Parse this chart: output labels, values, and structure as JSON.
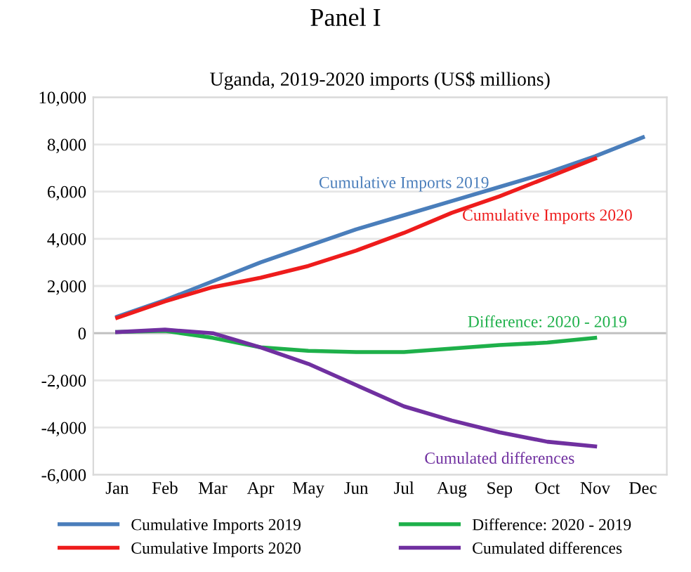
{
  "chart_data": {
    "type": "line",
    "title": "Panel I",
    "subtitle": "Uganda, 2019-2020 imports (US$ millions)",
    "categories": [
      "Jan",
      "Feb",
      "Mar",
      "Apr",
      "May",
      "Jun",
      "Jul",
      "Aug",
      "Sep",
      "Oct",
      "Nov",
      "Dec"
    ],
    "series": [
      {
        "name": "Cumulative Imports 2019",
        "color": "#4a7ebb",
        "values": [
          700,
          1400,
          2200,
          3000,
          3700,
          4400,
          5000,
          5600,
          6200,
          6800,
          7500,
          8300
        ]
      },
      {
        "name": "Cumulative Imports 2020",
        "color": "#ee1c1c",
        "values": [
          650,
          1350,
          1950,
          2350,
          2850,
          3500,
          4250,
          5100,
          5800,
          6600,
          7400,
          null
        ]
      },
      {
        "name": "Difference: 2020 - 2019",
        "color": "#1eb04a",
        "values": [
          50,
          100,
          -200,
          -600,
          -750,
          -800,
          -800,
          -650,
          -500,
          -400,
          -200,
          null
        ]
      },
      {
        "name": "Cumulated differences",
        "color": "#7030a0",
        "values": [
          50,
          150,
          0,
          -600,
          -1300,
          -2200,
          -3100,
          -3700,
          -4200,
          -4600,
          -4800,
          null
        ]
      }
    ],
    "ylim": [
      -6000,
      10000
    ],
    "yticks": [
      {
        "value": -6000,
        "label": "-6,000"
      },
      {
        "value": -4000,
        "label": "-4,000"
      },
      {
        "value": -2000,
        "label": "-2,000"
      },
      0,
      {
        "value": 2000,
        "label": "2,000"
      },
      {
        "value": 4000,
        "label": "4,000"
      },
      {
        "value": 6000,
        "label": "6,000"
      },
      {
        "value": 8000,
        "label": "8,000"
      },
      {
        "value": 10000,
        "label": "10,000"
      }
    ],
    "grid": "y",
    "legend": "bottom",
    "marker": "none",
    "line_style": "solid"
  }
}
